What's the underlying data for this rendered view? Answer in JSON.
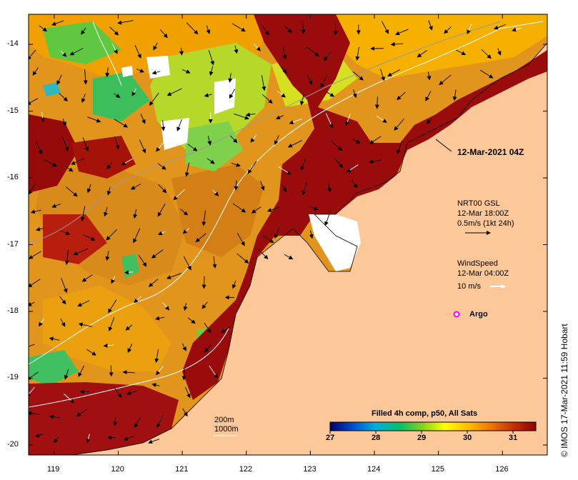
{
  "map": {
    "time_label": "12-Mar-2021 04Z",
    "lon_ticks": [
      119,
      120,
      121,
      122,
      123,
      124,
      125,
      126
    ],
    "lat_ticks": [
      -14,
      -15,
      -16,
      -17,
      -18,
      -19,
      -20
    ],
    "lon_range": [
      118.6,
      126.7
    ],
    "lat_range": [
      -20.15,
      -13.55
    ]
  },
  "legend": {
    "current": {
      "title": "NRT00 GSL",
      "time": "12-Mar 18:00Z",
      "scale": "0.5m/s (1kt 24h)"
    },
    "wind": {
      "title": "WindSpeed",
      "time": "12-Mar 04:00Z",
      "scale": "10 m/s"
    },
    "argo": {
      "label": "Argo"
    }
  },
  "depth_legend": {
    "line1": "200m",
    "line2": "1000m"
  },
  "colorbar": {
    "title": "Filled 4h comp, p50, All Sats",
    "ticks": [
      "27",
      "28",
      "29",
      "30",
      "31"
    ],
    "min": 27,
    "max": 31.5,
    "colors": [
      "#00006e",
      "#0050d0",
      "#00b0e0",
      "#00c070",
      "#80d020",
      "#ffff00",
      "#ffc000",
      "#f07800",
      "#c83000",
      "#900000"
    ]
  },
  "credit": "© IMOS 17-Mar-2021 11:59 Hobart"
}
